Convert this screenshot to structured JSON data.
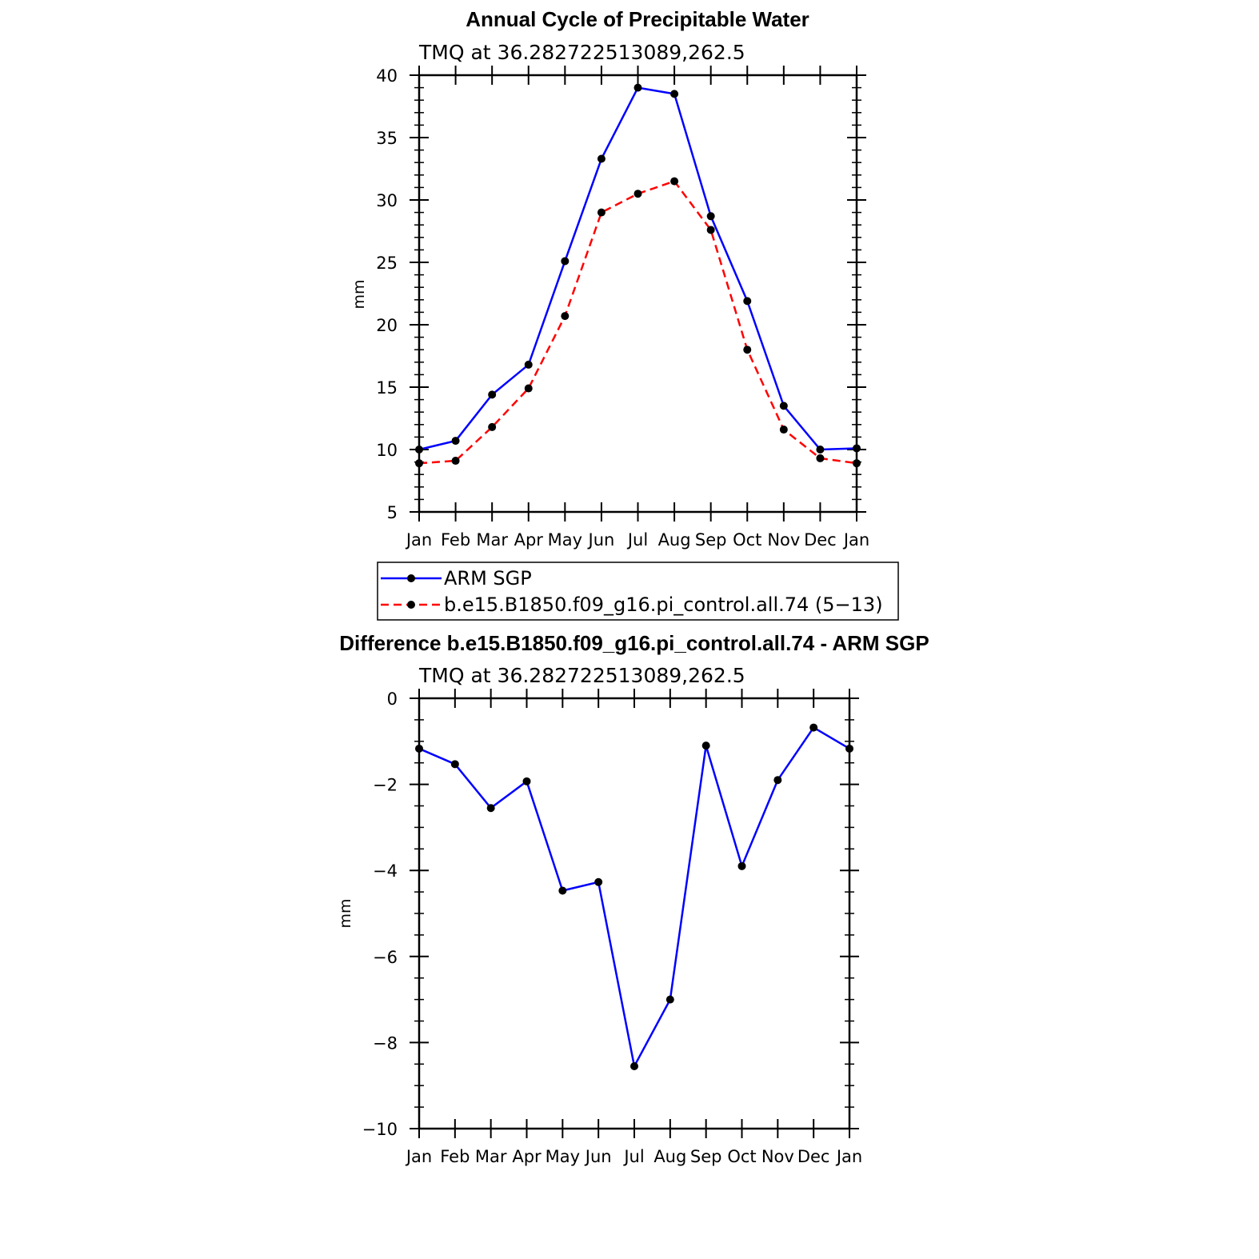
{
  "chart_data": [
    {
      "type": "line",
      "title": "Annual Cycle of Precipitable Water",
      "subtitle": "TMQ  at  36.282722513089,262.5",
      "ylabel": "mm",
      "xlabel": "",
      "ylim": [
        5,
        40
      ],
      "yticks": [
        5,
        10,
        15,
        20,
        25,
        30,
        35,
        40
      ],
      "categories": [
        "Jan",
        "Feb",
        "Mar",
        "Apr",
        "May",
        "Jun",
        "Jul",
        "Aug",
        "Sep",
        "Oct",
        "Nov",
        "Dec",
        "Jan"
      ],
      "legend_position": "below",
      "series": [
        {
          "name": "ARM  SGP",
          "color": "#0000ff",
          "dash": "solid",
          "values": [
            10.0,
            10.7,
            14.4,
            16.8,
            25.1,
            33.3,
            39.0,
            38.5,
            28.7,
            21.9,
            13.5,
            10.0,
            10.1
          ]
        },
        {
          "name": "b.e15.B1850.f09_g16.pi_control.all.74 (5−13)",
          "color": "#ff0000",
          "dash": "dashed",
          "values": [
            8.9,
            9.1,
            11.8,
            14.9,
            20.7,
            29.0,
            30.5,
            31.5,
            27.6,
            18.0,
            11.6,
            9.3,
            8.9
          ]
        }
      ]
    },
    {
      "type": "line",
      "title": "Difference b.e15.B1850.f09_g16.pi_control.all.74 - ARM SGP",
      "subtitle": "TMQ  at  36.282722513089,262.5",
      "ylabel": "mm",
      "xlabel": "",
      "ylim": [
        -10,
        0
      ],
      "yticks": [
        -10,
        -8,
        -6,
        -4,
        -2,
        0
      ],
      "ytick_labels": [
        "−10",
        "−8",
        "−6",
        "−4",
        "−2",
        "0"
      ],
      "categories": [
        "Jan",
        "Feb",
        "Mar",
        "Apr",
        "May",
        "Jun",
        "Jul",
        "Aug",
        "Sep",
        "Oct",
        "Nov",
        "Dec",
        "Jan"
      ],
      "series": [
        {
          "color": "#0000ff",
          "dash": "solid",
          "values": [
            -1.17,
            -1.53,
            -2.55,
            -1.93,
            -4.47,
            -4.27,
            -8.55,
            -7.0,
            -1.1,
            -3.9,
            -1.9,
            -0.68,
            -1.17
          ]
        }
      ]
    }
  ]
}
